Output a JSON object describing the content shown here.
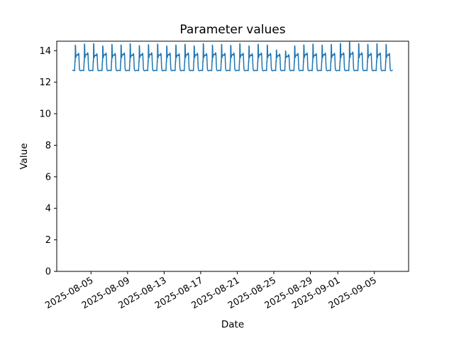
{
  "chart_data": {
    "type": "line",
    "title": "Parameter values",
    "xlabel": "Date",
    "ylabel": "Value",
    "line_color": "#1f77b4",
    "line_width": 1.5,
    "background": "#ffffff",
    "grid": false,
    "legend": "none",
    "ylim": [
      0,
      14.6
    ],
    "yticks": [
      0,
      2,
      4,
      6,
      8,
      10,
      12,
      14
    ],
    "xlim": [
      "2025-08-01T06:00:00Z",
      "2025-09-08T18:00:00Z"
    ],
    "xtick_dates": [
      "2025-08-05",
      "2025-08-09",
      "2025-08-13",
      "2025-08-17",
      "2025-08-21",
      "2025-08-25",
      "2025-08-29",
      "2025-09-01",
      "2025-09-05"
    ],
    "xtick_labels": [
      "2025-08-05",
      "2025-08-09",
      "2025-08-13",
      "2025-08-17",
      "2025-08-21",
      "2025-08-25",
      "2025-08-29",
      "2025-09-01",
      "2025-09-05"
    ],
    "xtick_rotation_deg": 30,
    "series": {
      "name": "Parameter",
      "start_date": "2025-08-03T00:00:00Z",
      "days": 35,
      "baseline": 12.75,
      "daily_profile": [
        [
          0.0,
          "base",
          0
        ],
        [
          4.8,
          "base",
          -0.02
        ],
        [
          5.4,
          "abs",
          13.05
        ],
        [
          5.9,
          "abs",
          13.35
        ],
        [
          6.3,
          "abs",
          13.28
        ],
        [
          6.8,
          "peak",
          0
        ],
        [
          7.4,
          "peak",
          -0.07
        ],
        [
          8.0,
          "abs",
          13.55
        ],
        [
          9.4,
          "plat",
          -0.06
        ],
        [
          11.5,
          "plat",
          0
        ],
        [
          13.5,
          "plat",
          -0.04
        ],
        [
          15.2,
          "plat",
          0.09
        ],
        [
          16.1,
          "plat",
          0.01
        ],
        [
          16.8,
          "abs",
          13.28
        ],
        [
          17.4,
          "abs",
          12.92
        ],
        [
          18.2,
          "base",
          0.01
        ],
        [
          20.8,
          "base",
          -0.03
        ],
        [
          23.2,
          "base",
          0
        ]
      ],
      "daily_peaks": [
        14.35,
        14.42,
        14.45,
        14.3,
        14.4,
        14.36,
        14.44,
        14.32,
        14.38,
        14.42,
        14.3,
        14.36,
        14.41,
        14.31,
        14.44,
        14.35,
        14.4,
        14.34,
        14.45,
        14.3,
        14.41,
        14.36,
        14.05,
        13.98,
        14.31,
        14.37,
        14.42,
        14.35,
        14.4,
        14.46,
        14.55,
        14.45,
        14.4,
        14.44,
        14.4
      ],
      "daily_plateaus": [
        13.75,
        13.78,
        13.72,
        13.76,
        13.74,
        13.77,
        13.73,
        13.75,
        13.78,
        13.74,
        13.76,
        13.72,
        13.77,
        13.75,
        13.73,
        13.78,
        13.74,
        13.76,
        13.75,
        13.72,
        13.77,
        13.74,
        13.7,
        13.66,
        13.74,
        13.77,
        13.73,
        13.76,
        13.75,
        13.78,
        13.82,
        13.78,
        13.75,
        13.77,
        13.74
      ]
    }
  }
}
